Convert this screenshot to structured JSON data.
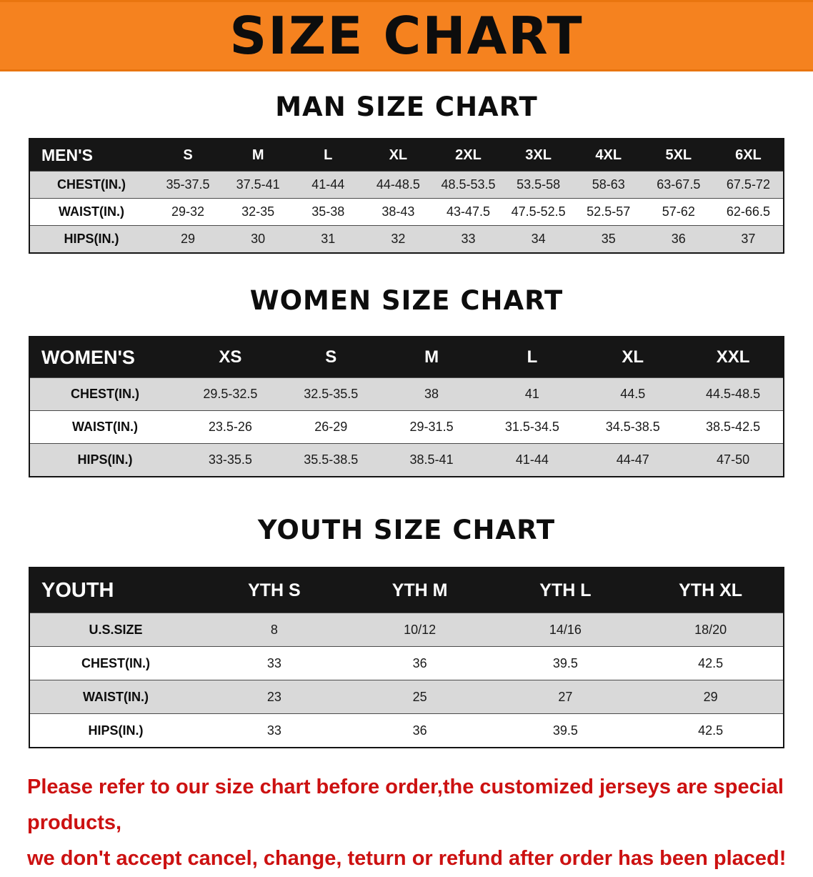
{
  "theme": {
    "banner_bg": "#f5821f",
    "note_color": "#cc1111",
    "table_header_bg": "#161616",
    "row_shade": "#d9d9d9"
  },
  "banner": {
    "title": "SIZE CHART"
  },
  "sections": [
    {
      "heading": "MAN SIZE CHART",
      "table": {
        "header_label": "MEN'S",
        "columns": [
          "S",
          "M",
          "L",
          "XL",
          "2XL",
          "3XL",
          "4XL",
          "5XL",
          "6XL"
        ],
        "rows": [
          {
            "label": "CHEST(IN.)",
            "values": [
              "35-37.5",
              "37.5-41",
              "41-44",
              "44-48.5",
              "48.5-53.5",
              "53.5-58",
              "58-63",
              "63-67.5",
              "67.5-72"
            ]
          },
          {
            "label": "WAIST(IN.)",
            "values": [
              "29-32",
              "32-35",
              "35-38",
              "38-43",
              "43-47.5",
              "47.5-52.5",
              "52.5-57",
              "57-62",
              "62-66.5"
            ]
          },
          {
            "label": "HIPS(IN.)",
            "values": [
              "29",
              "30",
              "31",
              "32",
              "33",
              "34",
              "35",
              "36",
              "37"
            ]
          }
        ]
      }
    },
    {
      "heading": "WOMEN SIZE CHART",
      "table": {
        "header_label": "WOMEN'S",
        "columns": [
          "XS",
          "S",
          "M",
          "L",
          "XL",
          "XXL"
        ],
        "rows": [
          {
            "label": "CHEST(IN.)",
            "values": [
              "29.5-32.5",
              "32.5-35.5",
              "38",
              "41",
              "44.5",
              "44.5-48.5"
            ]
          },
          {
            "label": "WAIST(IN.)",
            "values": [
              "23.5-26",
              "26-29",
              "29-31.5",
              "31.5-34.5",
              "34.5-38.5",
              "38.5-42.5"
            ]
          },
          {
            "label": "HIPS(IN.)",
            "values": [
              "33-35.5",
              "35.5-38.5",
              "38.5-41",
              "41-44",
              "44-47",
              "47-50"
            ]
          }
        ]
      }
    },
    {
      "heading": "YOUTH SIZE CHART",
      "table": {
        "header_label": "YOUTH",
        "columns": [
          "YTH S",
          "YTH M",
          "YTH L",
          "YTH XL"
        ],
        "rows": [
          {
            "label": "U.S.SIZE",
            "values": [
              "8",
              "10/12",
              "14/16",
              "18/20"
            ]
          },
          {
            "label": "CHEST(IN.)",
            "values": [
              "33",
              "36",
              "39.5",
              "42.5"
            ]
          },
          {
            "label": "WAIST(IN.)",
            "values": [
              "23",
              "25",
              "27",
              "29"
            ]
          },
          {
            "label": "HIPS(IN.)",
            "values": [
              "33",
              "36",
              "39.5",
              "42.5"
            ]
          }
        ]
      }
    }
  ],
  "footer_note": {
    "line1": "Please refer to our size chart before order,the customized jerseys are special products,",
    "line2": "we don't accept cancel, change, teturn or refund after order has been placed!"
  }
}
